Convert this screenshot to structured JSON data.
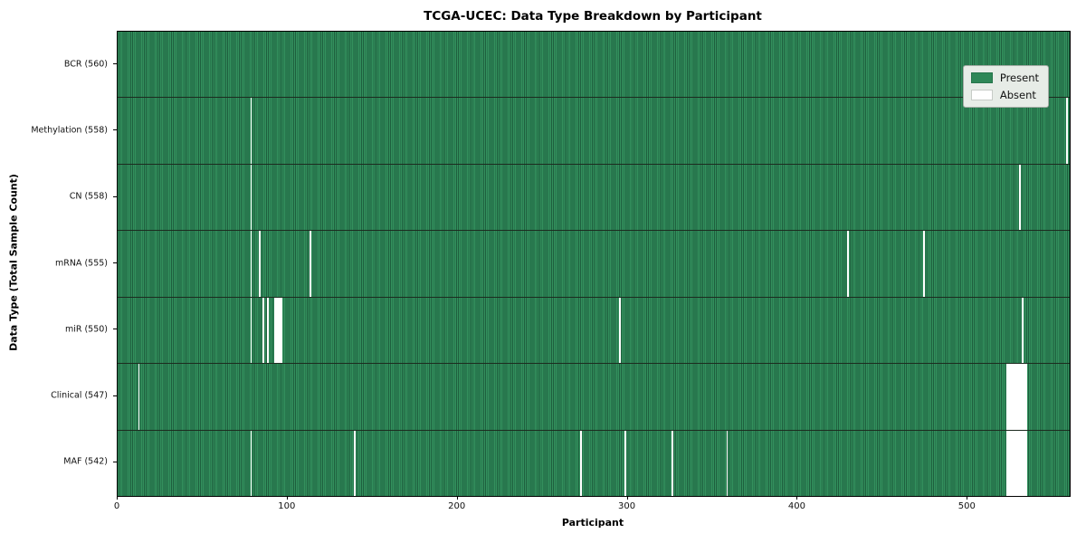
{
  "chart_data": {
    "type": "heatmap",
    "title": "TCGA-UCEC: Data Type Breakdown by Participant",
    "xlabel": "Participant",
    "ylabel": "Data Type (Total Sample Count)",
    "x_min": 0,
    "x_max": 560,
    "x_ticks": [
      0,
      100,
      200,
      300,
      400,
      500
    ],
    "total_participants": 560,
    "legend": {
      "position": "upper right",
      "present_label": "Present",
      "absent_label": "Absent"
    },
    "colors": {
      "present_green": "#2e8757",
      "present_stripe_dark": "#1e5f3e",
      "absent_white": "#ffffff",
      "row_divider": "#1c2b1f",
      "legend_background": "#e7ece7",
      "legend_border": "#a6aca6"
    },
    "rows": [
      {
        "data_type": "BCR",
        "label": "BCR (560)",
        "sample_count": 560,
        "absent_participants": []
      },
      {
        "data_type": "Methylation",
        "label": "Methylation (558)",
        "sample_count": 558,
        "absent_participants": [
          78,
          558
        ]
      },
      {
        "data_type": "CN",
        "label": "CN (558)",
        "sample_count": 558,
        "absent_participants": [
          78,
          530
        ]
      },
      {
        "data_type": "mRNA",
        "label": "mRNA (555)",
        "sample_count": 555,
        "absent_participants": [
          78,
          83,
          113,
          429,
          474
        ]
      },
      {
        "data_type": "miR",
        "label": "miR (550)",
        "sample_count": 550,
        "absent_participants": [
          78,
          85,
          88,
          92,
          93,
          94,
          95,
          96,
          295,
          532
        ]
      },
      {
        "data_type": "Clinical",
        "label": "Clinical (547)",
        "sample_count": 547,
        "absent_participants": [
          12,
          523,
          524,
          525,
          526,
          527,
          528,
          529,
          530,
          531,
          532,
          533,
          534
        ]
      },
      {
        "data_type": "MAF",
        "label": "MAF (542)",
        "sample_count": 542,
        "absent_participants": [
          78,
          139,
          272,
          298,
          326,
          358,
          523,
          524,
          525,
          526,
          527,
          528,
          529,
          530,
          531,
          532,
          533,
          534
        ]
      }
    ]
  }
}
